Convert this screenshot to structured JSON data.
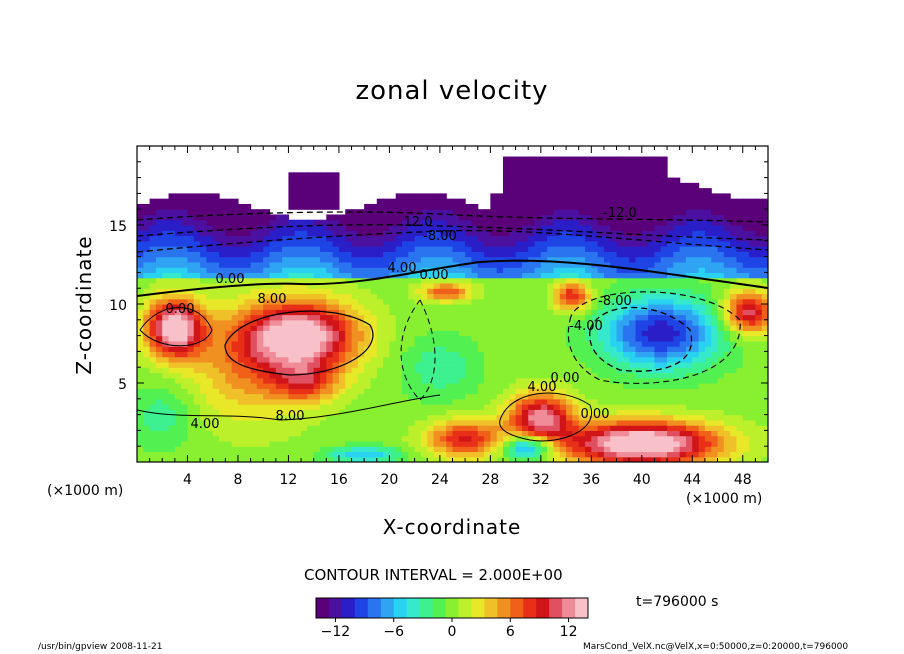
{
  "chart_data": {
    "type": "heatmap",
    "title": "zonal velocity",
    "xlabel": "X-coordinate",
    "ylabel": "Z-coordinate",
    "x_unit_left": "(×1000 m)",
    "x_unit_right": "(×1000 m)",
    "xlim": [
      0,
      50
    ],
    "ylim": [
      0,
      20
    ],
    "x_ticks": [
      4,
      8,
      12,
      16,
      20,
      24,
      28,
      32,
      36,
      40,
      44,
      48
    ],
    "y_ticks": [
      5,
      10,
      15
    ],
    "contour_interval_text": "CONTOUR INTERVAL = 2.000E+00",
    "time_text": "t=796000 s",
    "colorbar": {
      "min": -14,
      "max": 14,
      "ticks": [
        -12,
        -6,
        0,
        6,
        12
      ],
      "colors": [
        "#5a0078",
        "#4b10a0",
        "#2a1ec8",
        "#1f44e6",
        "#2a74f0",
        "#2ea4f2",
        "#29d2f0",
        "#36e8cc",
        "#3df090",
        "#52f050",
        "#88f030",
        "#bcf02a",
        "#e8e828",
        "#f0c028",
        "#f09020",
        "#f06018",
        "#e83018",
        "#d01418",
        "#e05060",
        "#f08c98",
        "#f8c0c8"
      ]
    },
    "contour_labels": [
      "12.0",
      "-8.00",
      "4.00",
      "0.00",
      "0.00",
      "8.00",
      "-12.0",
      "-8.00",
      "-4.00",
      "0.00",
      "4.00",
      "0.00",
      "8.00",
      "4.00",
      "0.00"
    ],
    "grid": false
  },
  "footer": {
    "left": "/usr/bin/gpview   2008-11-21",
    "right": "MarsCond_VelX.nc@VelX,x=0:50000,z=0:20000,t=796000"
  }
}
